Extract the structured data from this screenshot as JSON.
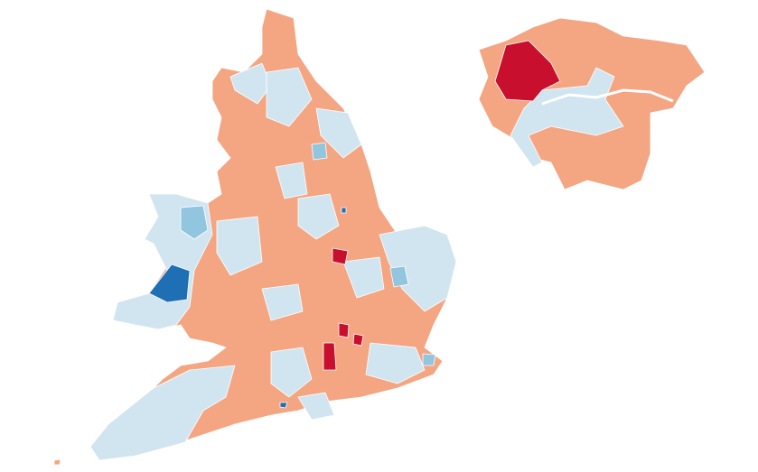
{
  "map": {
    "colors": [
      "#f4a582",
      "#d1e5f0",
      "#92c5de",
      "#1f6fb4",
      "#c8102e"
    ]
  }
}
